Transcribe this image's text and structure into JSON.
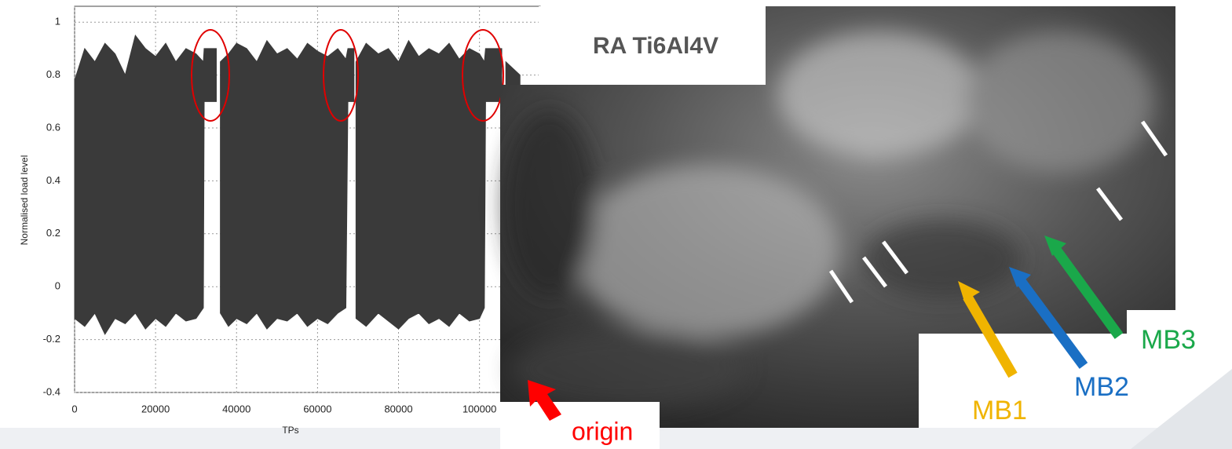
{
  "chart_data": {
    "type": "range-area",
    "x_label": "TPs",
    "y_label": "Normalised load level",
    "x": [
      0,
      2500,
      5000,
      7500,
      10000,
      12500,
      15000,
      17500,
      20000,
      22500,
      25000,
      27500,
      30000,
      31800,
      32000,
      35000,
      35500,
      36000,
      38000,
      40000,
      42500,
      45000,
      47500,
      50000,
      52500,
      55000,
      57500,
      60000,
      62500,
      65000,
      67000,
      67500,
      69000,
      69200,
      69500,
      72000,
      75000,
      77500,
      80000,
      82500,
      85000,
      87500,
      90000,
      92500,
      95000,
      97500,
      100000,
      101200,
      101500,
      105500,
      106000,
      106500,
      110000
    ],
    "series": [
      {
        "color": "#3a3a3a",
        "values": [
          0.78,
          0.9,
          0.85,
          0.92,
          0.88,
          0.8,
          0.95,
          0.9,
          0.87,
          0.92,
          0.85,
          0.9,
          0.88,
          0.85,
          0.9,
          0.9,
          null,
          0.85,
          0.88,
          0.92,
          0.9,
          0.85,
          0.93,
          0.88,
          0.9,
          0.86,
          0.92,
          0.89,
          0.87,
          0.9,
          0.86,
          0.9,
          0.9,
          null,
          0.85,
          0.92,
          0.88,
          0.9,
          0.85,
          0.93,
          0.87,
          0.9,
          0.88,
          0.92,
          0.86,
          0.9,
          0.88,
          0.85,
          0.9,
          0.9,
          null,
          0.85,
          0.8
        ]
      },
      {
        "color": "#3a3a3a",
        "values": [
          -0.12,
          -0.15,
          -0.1,
          -0.18,
          -0.12,
          -0.14,
          -0.1,
          -0.16,
          -0.12,
          -0.15,
          -0.1,
          -0.13,
          -0.12,
          -0.08,
          0.7,
          0.7,
          null,
          -0.1,
          -0.15,
          -0.12,
          -0.14,
          -0.1,
          -0.16,
          -0.12,
          -0.13,
          -0.1,
          -0.15,
          -0.12,
          -0.14,
          -0.1,
          -0.08,
          0.7,
          0.7,
          null,
          -0.12,
          -0.15,
          -0.1,
          -0.13,
          -0.16,
          -0.12,
          -0.1,
          -0.14,
          -0.12,
          -0.15,
          -0.1,
          -0.13,
          -0.12,
          -0.08,
          0.7,
          0.7,
          null,
          -0.1,
          -0.1
        ]
      }
    ],
    "xlim": [
      0,
      115000
    ],
    "xticks": [
      0,
      20000,
      40000,
      60000,
      80000,
      100000
    ],
    "ylim": [
      -0.4,
      1.06
    ],
    "yticks": [
      -0.4,
      -0.2,
      0,
      0.2,
      0.4,
      0.6,
      0.8,
      1
    ],
    "grid": true
  },
  "image": {
    "title": "RA Ti6Al4V",
    "labels": [
      "MB1",
      "MB2",
      "MB3",
      "origin"
    ]
  }
}
